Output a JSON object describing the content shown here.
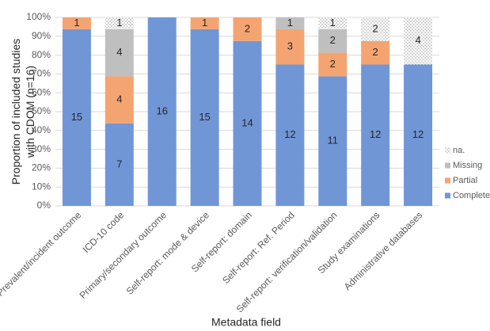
{
  "chart_data": {
    "type": "stacked_bar",
    "y_label": "Proportion of included studies with CDOM (n=16)",
    "x_label": "Metadata field",
    "categories": [
      "Prevalent/incident outcome",
      "ICD-10 code",
      "Primary/secondary outcome",
      "Self-report: mode & device",
      "Self-report: domain",
      "Self-report: Ref. Period",
      "Self-report: verification/validation",
      "Study examinations",
      "Administrative databases"
    ],
    "series": [
      {
        "name": "Complete",
        "color": "#7096d6",
        "values": [
          93.75,
          43.75,
          100,
          93.75,
          87.5,
          75,
          68.75,
          75,
          75
        ],
        "value_labels": [
          "15",
          "7",
          "16",
          "15",
          "14",
          "12",
          "11",
          "12",
          "12"
        ]
      },
      {
        "name": "Partial",
        "color": "#f4a470",
        "values": [
          6.25,
          25,
          0,
          6.25,
          12.5,
          18.75,
          12.5,
          12.5,
          0
        ],
        "value_labels": [
          "1",
          "4",
          null,
          "1",
          "2",
          "3",
          "2",
          "2",
          null
        ]
      },
      {
        "name": "Missing",
        "color": "#bfbfbf",
        "values": [
          0,
          25,
          0,
          0,
          0,
          6.25,
          12.5,
          0,
          0
        ],
        "value_labels": [
          null,
          "4",
          null,
          null,
          null,
          "1",
          "2",
          null,
          null
        ]
      },
      {
        "name": "na.",
        "color": "#a6a6a6",
        "pattern": "dots",
        "values": [
          0,
          6.25,
          0,
          0,
          0,
          0,
          6.25,
          12.5,
          25
        ],
        "value_labels": [
          null,
          "1",
          null,
          null,
          null,
          null,
          "1",
          "2",
          "4"
        ]
      }
    ],
    "ylim": [
      0,
      100
    ],
    "yticks": [
      {
        "value": 0,
        "label": "0%"
      },
      {
        "value": 10,
        "label": "10%"
      },
      {
        "value": 20,
        "label": "20%"
      },
      {
        "value": 30,
        "label": "30%"
      },
      {
        "value": 40,
        "label": "40%"
      },
      {
        "value": 50,
        "label": "50%"
      },
      {
        "value": 60,
        "label": "60%"
      },
      {
        "value": 70,
        "label": "70%"
      },
      {
        "value": 80,
        "label": "80%"
      },
      {
        "value": 90,
        "label": "90%"
      },
      {
        "value": 100,
        "label": "100%"
      }
    ],
    "grid": true,
    "legend": "right"
  }
}
